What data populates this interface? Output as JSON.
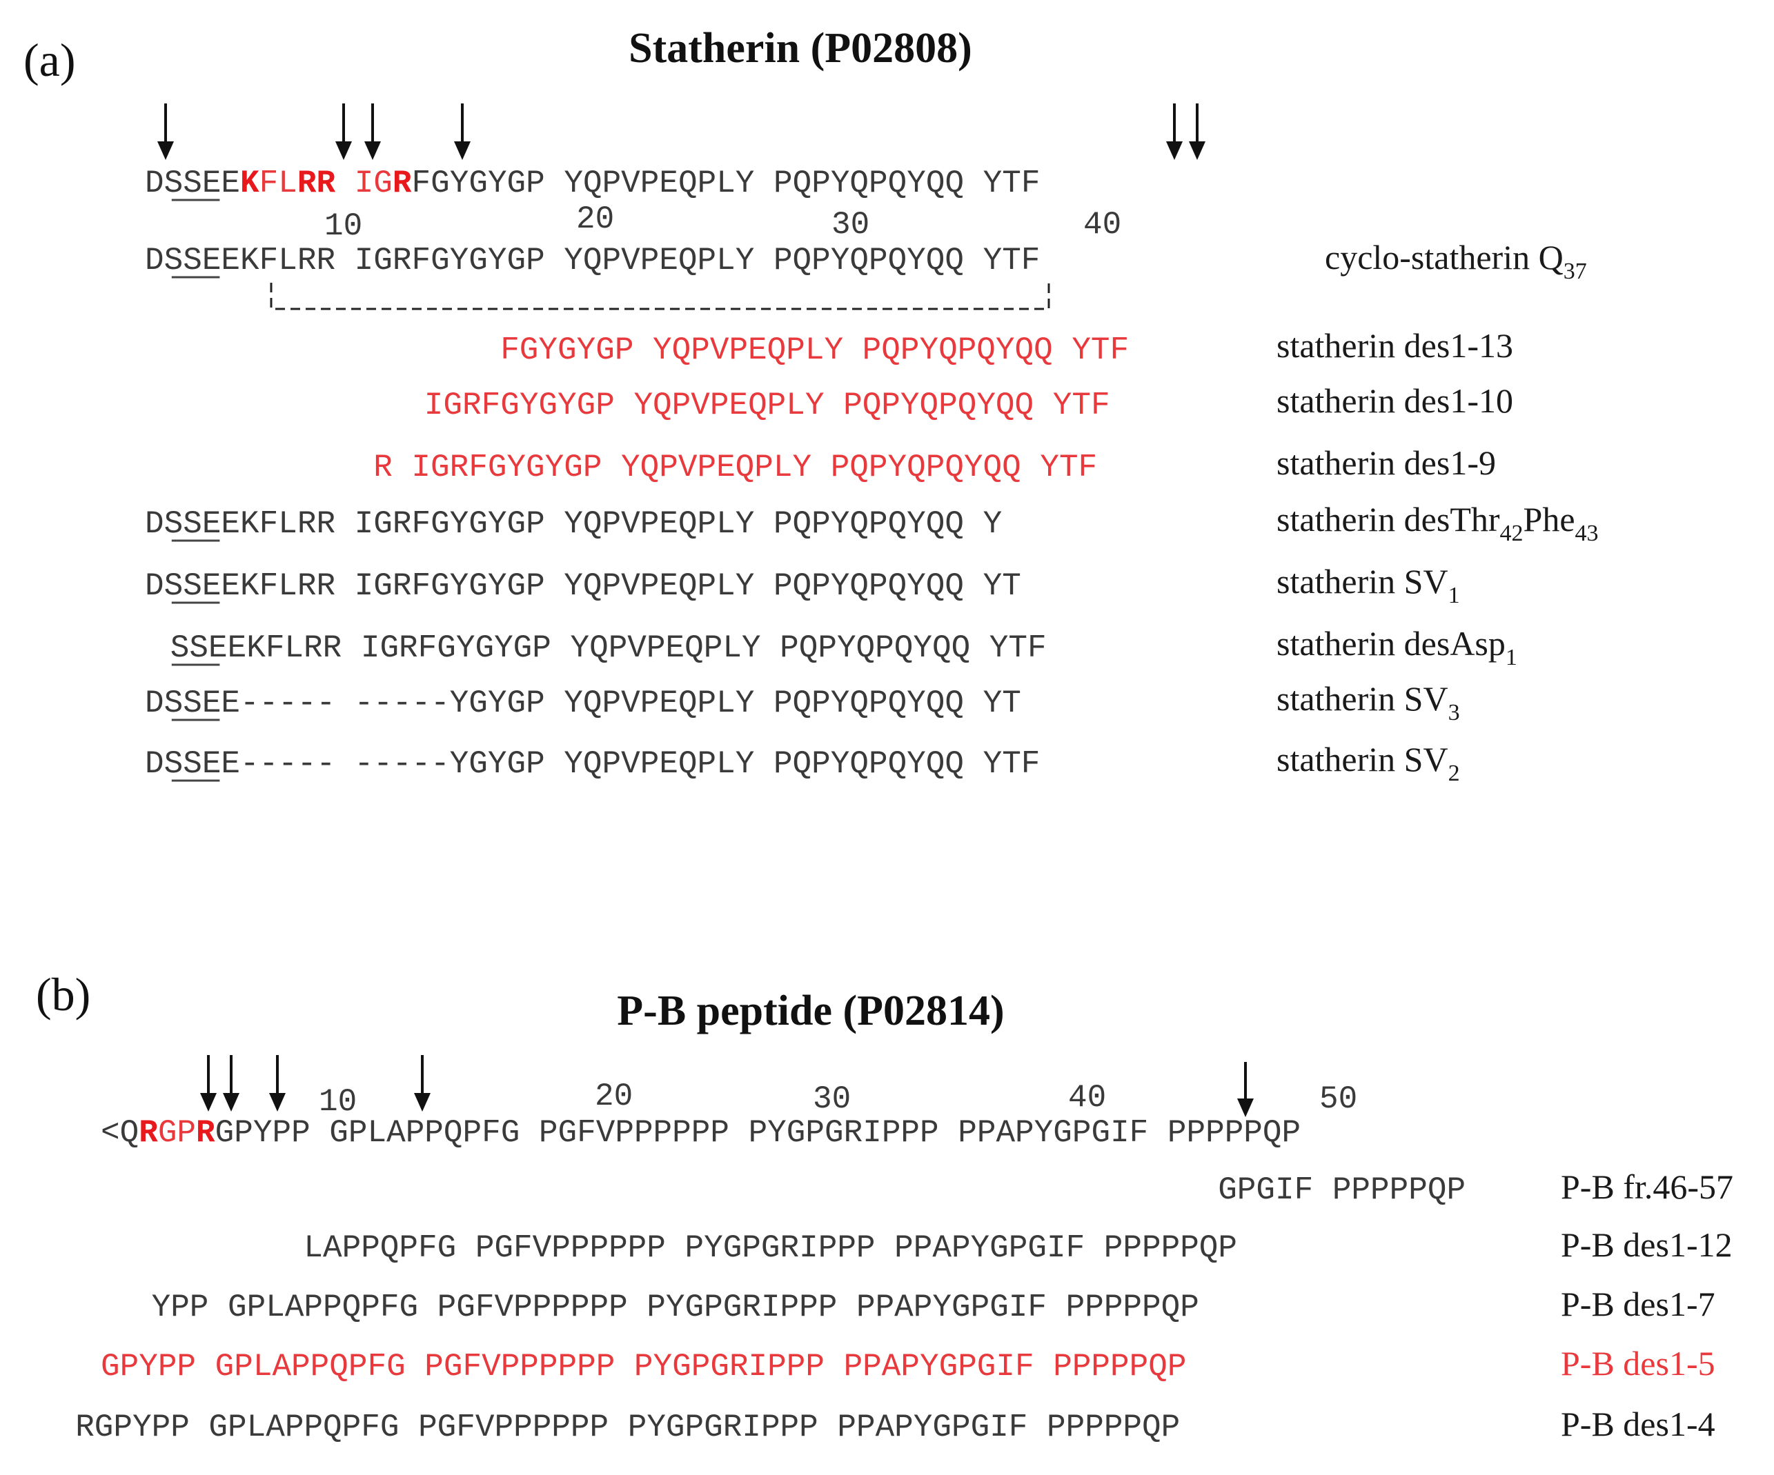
{
  "panel_a": {
    "label": "(a)",
    "title": "Statherin (P02808)",
    "numbers": [
      "10",
      "20",
      "30",
      "40"
    ],
    "reference": {
      "parts": [
        {
          "t": "D",
          "s": "n"
        },
        {
          "t": "SS",
          "s": "nu"
        },
        {
          "t": "EE",
          "s": "n"
        },
        {
          "t": "K",
          "s": "rb"
        },
        {
          "t": "FL",
          "s": "r"
        },
        {
          "t": "RR",
          "s": "rb"
        },
        {
          "t": " IG",
          "s": "r"
        },
        {
          "t": "R",
          "s": "rb"
        },
        {
          "t": "FGYGYGP YQPVPEQPLY PQPYQPQYQQ YTF",
          "s": "n"
        }
      ]
    },
    "rows": [
      {
        "seq": "DSSEEKFLRR IGRFGYGYGP YQPVPEQPLY PQPYQPQYQQ YTF",
        "color": "normal",
        "underline": true,
        "label": "cyclo-statherin Q",
        "sub": "37",
        "label_color": "normal"
      },
      {
        "seq": "FGYGYGP YQPVPEQPLY PQPYQPQYQQ YTF",
        "color": "red",
        "underline": false,
        "label": "statherin des1-13",
        "sub": "",
        "label_color": "normal"
      },
      {
        "seq": "IGRFGYGYGP YQPVPEQPLY PQPYQPQYQQ YTF",
        "color": "red",
        "underline": false,
        "label": "statherin des1-10",
        "sub": "",
        "label_color": "normal"
      },
      {
        "seq": "R IGRFGYGYGP YQPVPEQPLY PQPYQPQYQQ YTF",
        "color": "red",
        "underline": false,
        "label": "statherin des1-9",
        "sub": "",
        "label_color": "normal"
      },
      {
        "seq": "DSSEEKFLRR IGRFGYGYGP YQPVPEQPLY PQPYQPQYQQ Y",
        "color": "normal",
        "underline": true,
        "label": "statherin desThr",
        "sub": "42",
        "label_tail": "Phe",
        "sub2": "43",
        "label_color": "normal"
      },
      {
        "seq": "DSSEEKFLRR IGRFGYGYGP YQPVPEQPLY PQPYQPQYQQ YT",
        "color": "normal",
        "underline": true,
        "label": "statherin SV",
        "sub": "1",
        "label_color": "normal"
      },
      {
        "seq": "SSEEKFLRR IGRFGYGYGP YQPVPEQPLY PQPYQPQYQQ YTF",
        "color": "normal",
        "underline": true,
        "label": "statherin desAsp",
        "sub": "1",
        "label_color": "normal"
      },
      {
        "seq": "DSSEE----- -----YGYGP YQPVPEQPLY PQPYQPQYQQ YT",
        "color": "normal",
        "underline": true,
        "label": "statherin SV",
        "sub": "3",
        "label_color": "normal"
      },
      {
        "seq": "DSSEE----- -----YGYGP YQPVPEQPLY PQPYQPQYQQ YTF",
        "color": "normal",
        "underline": true,
        "label": "statherin SV",
        "sub": "2",
        "label_color": "normal"
      }
    ]
  },
  "panel_b": {
    "label": "(b)",
    "title": "P-B peptide (P02814)",
    "numbers": [
      "10",
      "20",
      "30",
      "40",
      "50"
    ],
    "reference": {
      "parts": [
        {
          "t": "<Q",
          "s": "n"
        },
        {
          "t": "R",
          "s": "rb"
        },
        {
          "t": "GP",
          "s": "r"
        },
        {
          "t": "R",
          "s": "rb"
        },
        {
          "t": "GPYPP GPLAPPQPFG PGFVPPPPPP PYGPGRIPPP PPAPYGPGIF PPPPPQP",
          "s": "n"
        }
      ]
    },
    "rows": [
      {
        "seq": "GPGIF PPPPPQP",
        "color": "normal",
        "label": "P-B fr.46-57",
        "label_color": "normal"
      },
      {
        "seq": "LAPPQPFG PGFVPPPPPP PYGPGRIPPP PPAPYGPGIF PPPPPQP",
        "color": "normal",
        "label": "P-B des1-12",
        "label_color": "normal"
      },
      {
        "seq": "YPP GPLAPPQPFG PGFVPPPPPP PYGPGRIPPP PPAPYGPGIF PPPPPQP",
        "color": "normal",
        "label": "P-B des1-7",
        "label_color": "normal"
      },
      {
        "seq": "GPYPP GPLAPPQPFG PGFVPPPPPP PYGPGRIPPP PPAPYGPGIF PPPPPQP",
        "color": "red",
        "label": "P-B des1-5",
        "label_color": "red"
      },
      {
        "seq": "RGPYPP GPLAPPQPFG PGFVPPPPPP PYGPGRIPPP PPAPYGPGIF PPPPPQP",
        "color": "normal",
        "label": "P-B des1-4",
        "label_color": "normal"
      }
    ]
  }
}
